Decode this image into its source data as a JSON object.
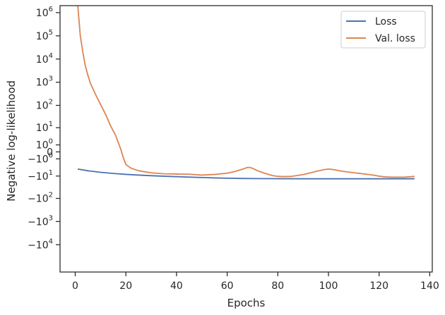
{
  "chart_data": {
    "type": "line",
    "xlabel": "Epochs",
    "ylabel": "Negative log-likelihood",
    "xlim": [
      -6,
      141
    ],
    "x_ticks": [
      0,
      20,
      40,
      60,
      80,
      100,
      120,
      140
    ],
    "x_tick_labels": [
      "0",
      "20",
      "40",
      "60",
      "80",
      "100",
      "120",
      "140"
    ],
    "y_scale": "symlog",
    "ylim": [
      -150000,
      2000000
    ],
    "y_ticks": [
      {
        "value": 1000000,
        "base": "10",
        "exp": "6",
        "neg": false
      },
      {
        "value": 100000,
        "base": "10",
        "exp": "5",
        "neg": false
      },
      {
        "value": 10000,
        "base": "10",
        "exp": "4",
        "neg": false
      },
      {
        "value": 1000,
        "base": "10",
        "exp": "3",
        "neg": false
      },
      {
        "value": 100,
        "base": "10",
        "exp": "2",
        "neg": false
      },
      {
        "value": 10,
        "base": "10",
        "exp": "1",
        "neg": false
      },
      {
        "value": 1,
        "base": "10",
        "exp": "0",
        "neg": false
      },
      {
        "value": 0,
        "base": "0",
        "exp": "",
        "neg": false
      },
      {
        "value": -1,
        "base": "10",
        "exp": "0",
        "neg": true
      },
      {
        "value": -10,
        "base": "10",
        "exp": "1",
        "neg": true
      },
      {
        "value": -100,
        "base": "10",
        "exp": "2",
        "neg": true
      },
      {
        "value": -1000,
        "base": "10",
        "exp": "3",
        "neg": true
      },
      {
        "value": -10000,
        "base": "10",
        "exp": "4",
        "neg": true
      }
    ],
    "grid": false,
    "legend_position": "top-right",
    "series": [
      {
        "name": "Loss",
        "color": "#4c72b0",
        "x": [
          1,
          5,
          10,
          15,
          20,
          25,
          30,
          35,
          40,
          45,
          50,
          55,
          60,
          65,
          70,
          75,
          80,
          90,
          100,
          110,
          120,
          130,
          134
        ],
        "y": [
          -4.5,
          -5.5,
          -6.6,
          -7.5,
          -8.3,
          -9.0,
          -9.6,
          -10.2,
          -10.7,
          -11.2,
          -11.7,
          -12.2,
          -12.6,
          -12.9,
          -13.1,
          -13.2,
          -13.3,
          -13.4,
          -13.4,
          -13.4,
          -13.4,
          -13.4,
          -13.4
        ]
      },
      {
        "name": "Val. loss",
        "color": "#dd8452",
        "x": [
          1,
          2,
          3,
          4,
          5,
          6,
          8,
          10,
          12,
          14,
          16,
          17,
          18,
          18.5,
          19,
          19.5,
          20,
          21,
          22,
          25,
          30,
          35,
          40,
          45,
          50,
          55,
          60,
          63,
          66,
          68,
          69,
          70,
          72,
          75,
          78,
          80,
          82,
          85,
          90,
          95,
          98,
          100,
          102,
          105,
          110,
          115,
          118,
          120,
          122,
          125,
          130,
          134
        ],
        "y": [
          2000000,
          100000,
          20000,
          5000,
          2000,
          900,
          300,
          110,
          40,
          12,
          4,
          1.5,
          0.3,
          -0.2,
          -0.8,
          -1.5,
          -2.5,
          -3.2,
          -4,
          -5.5,
          -7,
          -7.8,
          -8,
          -8.2,
          -9,
          -8.4,
          -7.3,
          -6,
          -4.6,
          -3.7,
          -3.7,
          -4.1,
          -5.5,
          -7.5,
          -9.6,
          -10.3,
          -10.6,
          -10.5,
          -8.5,
          -6,
          -4.9,
          -4.5,
          -4.8,
          -5.7,
          -6.9,
          -8.2,
          -9.1,
          -10.1,
          -10.9,
          -11.3,
          -11.3,
          -10.4
        ]
      }
    ]
  }
}
